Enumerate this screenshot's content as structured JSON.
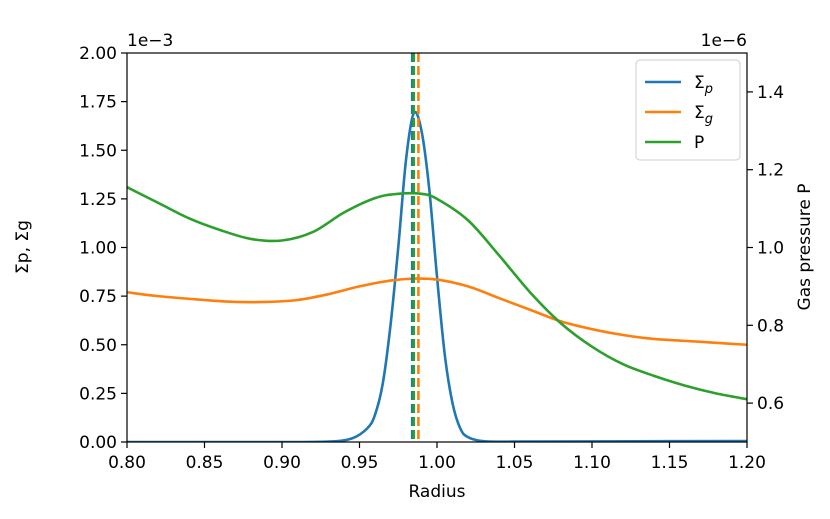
{
  "chart_data": {
    "type": "line",
    "xlabel": "Radius",
    "ylabel_left": "Σp, Σg",
    "ylabel_right": "Gas pressure P",
    "left_offset": "1e−3",
    "right_offset": "1e−6",
    "xlim": [
      0.8,
      1.2
    ],
    "ylim_left": [
      0.0,
      2.0
    ],
    "ylim_right": [
      0.5,
      1.5
    ],
    "x_ticks": [
      "0.80",
      "0.85",
      "0.90",
      "0.95",
      "1.00",
      "1.05",
      "1.10",
      "1.15",
      "1.20"
    ],
    "x_tick_values": [
      0.8,
      0.85,
      0.9,
      0.95,
      1.0,
      1.05,
      1.1,
      1.15,
      1.2
    ],
    "y_left_ticks": [
      "0.00",
      "0.25",
      "0.50",
      "0.75",
      "1.00",
      "1.25",
      "1.50",
      "1.75",
      "2.00"
    ],
    "y_left_tick_values": [
      0.0,
      0.25,
      0.5,
      0.75,
      1.0,
      1.25,
      1.5,
      1.75,
      2.0
    ],
    "y_right_ticks": [
      "0.6",
      "0.8",
      "1.0",
      "1.2",
      "1.4"
    ],
    "y_right_tick_values": [
      0.6,
      0.8,
      1.0,
      1.2,
      1.4
    ],
    "series": [
      {
        "name": "Σp",
        "legend_label": "Σ",
        "legend_sub": "p",
        "axis": "left",
        "color": "#1f77b4",
        "x": [
          0.8,
          0.85,
          0.9,
          0.93,
          0.945,
          0.955,
          0.96,
          0.965,
          0.97,
          0.975,
          0.98,
          0.985,
          0.99,
          0.995,
          1.0,
          1.005,
          1.01,
          1.015,
          1.02,
          1.03,
          1.05,
          1.1,
          1.2
        ],
        "y": [
          0.0,
          0.0,
          0.0,
          0.002,
          0.018,
          0.07,
          0.14,
          0.3,
          0.6,
          1.0,
          1.45,
          1.69,
          1.6,
          1.3,
          0.85,
          0.45,
          0.2,
          0.07,
          0.025,
          0.004,
          0.002,
          0.003,
          0.005
        ]
      },
      {
        "name": "Σg",
        "legend_label": "Σ",
        "legend_sub": "g",
        "axis": "left",
        "color": "#ff7f0e",
        "x": [
          0.8,
          0.82,
          0.85,
          0.87,
          0.89,
          0.91,
          0.93,
          0.95,
          0.97,
          0.985,
          1.0,
          1.02,
          1.04,
          1.06,
          1.08,
          1.1,
          1.12,
          1.14,
          1.16,
          1.18,
          1.2
        ],
        "y": [
          0.77,
          0.75,
          0.73,
          0.72,
          0.72,
          0.73,
          0.76,
          0.8,
          0.83,
          0.84,
          0.835,
          0.8,
          0.74,
          0.68,
          0.62,
          0.58,
          0.55,
          0.53,
          0.52,
          0.51,
          0.5
        ]
      },
      {
        "name": "P",
        "legend_label": "P",
        "legend_sub": "",
        "axis": "right",
        "color": "#2ca02c",
        "x": [
          0.8,
          0.82,
          0.84,
          0.86,
          0.88,
          0.9,
          0.92,
          0.94,
          0.96,
          0.975,
          0.99,
          1.0,
          1.02,
          1.04,
          1.06,
          1.08,
          1.1,
          1.12,
          1.14,
          1.16,
          1.18,
          1.2
        ],
        "y": [
          1.155,
          1.115,
          1.075,
          1.045,
          1.022,
          1.018,
          1.04,
          1.09,
          1.127,
          1.138,
          1.138,
          1.125,
          1.07,
          0.98,
          0.885,
          0.805,
          0.745,
          0.7,
          0.67,
          0.645,
          0.625,
          0.61
        ]
      }
    ],
    "vlines": [
      {
        "name": "Σp peak",
        "x": 0.984,
        "color": "#1f77b4"
      },
      {
        "name": "Σg peak",
        "x": 0.988,
        "color": "#ff7f0e"
      },
      {
        "name": "P peak",
        "x": 0.985,
        "color": "#2ca02c"
      }
    ],
    "legend_position": "top-right",
    "grid": false
  }
}
